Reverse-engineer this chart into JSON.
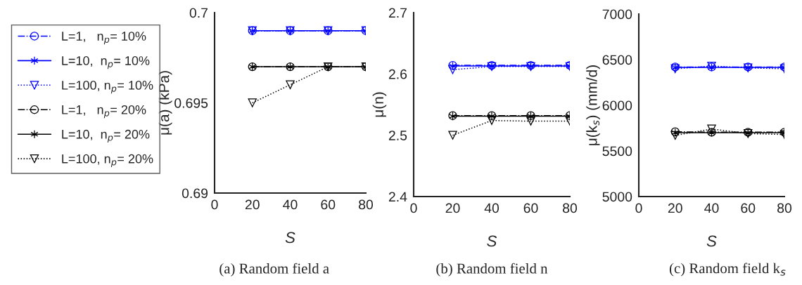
{
  "chart_data": [
    {
      "type": "line",
      "xlabel": "S",
      "ylabel": "μ(a) (kPa)",
      "x": [
        20,
        40,
        60,
        80
      ],
      "xlim": [
        0,
        80
      ],
      "xticks": [
        0,
        20,
        40,
        60,
        80
      ],
      "ylim": [
        0.69,
        0.7
      ],
      "yticks": [
        0.69,
        0.695,
        0.7
      ],
      "grid": false,
      "legend": "left",
      "annotations": [
        "(a) Random field a"
      ],
      "series": [
        {
          "name": "L=1,   n$_{p}$= 10%",
          "color": "#0000ff",
          "marker": "circle",
          "line_style": "dashdot",
          "values": [
            0.699,
            0.699,
            0.699,
            0.699
          ]
        },
        {
          "name": "L=10,  n$_{p}$= 10%",
          "color": "#0000ff",
          "marker": "cross",
          "line_style": "solid",
          "values": [
            0.699,
            0.699,
            0.699,
            0.699
          ]
        },
        {
          "name": "L=100, n$_{p}$= 10%",
          "color": "#0000ff",
          "marker": "triangle",
          "line_style": "dotted",
          "values": [
            0.699,
            0.699,
            0.699,
            0.699
          ]
        },
        {
          "name": "L=1,   n$_{p}$= 20%",
          "color": "#000000",
          "marker": "circle",
          "line_style": "dashdot",
          "values": [
            0.697,
            0.697,
            0.697,
            0.697
          ]
        },
        {
          "name": "L=10,  n$_{p}$= 20%",
          "color": "#000000",
          "marker": "cross",
          "line_style": "solid",
          "values": [
            0.697,
            0.697,
            0.697,
            0.697
          ]
        },
        {
          "name": "L=100, n$_{p}$= 20%",
          "color": "#000000",
          "marker": "triangle",
          "line_style": "dotted",
          "values": [
            0.695,
            0.696,
            0.697,
            0.697
          ]
        }
      ]
    },
    {
      "type": "line",
      "xlabel": "S",
      "ylabel": "μ(n)",
      "x": [
        20,
        40,
        60,
        80
      ],
      "xlim": [
        0,
        80
      ],
      "xticks": [
        0,
        20,
        40,
        60,
        80
      ],
      "ylim": [
        2.4,
        2.7
      ],
      "yticks": [
        2.4,
        2.5,
        2.6,
        2.7
      ],
      "grid": false,
      "annotations": [
        "(b) Random field n"
      ],
      "series": [
        {
          "color": "#0000ff",
          "marker": "circle",
          "line_style": "dashdot",
          "values": [
            2.614,
            2.614,
            2.614,
            2.614
          ]
        },
        {
          "color": "#0000ff",
          "marker": "cross",
          "line_style": "solid",
          "values": [
            2.613,
            2.613,
            2.613,
            2.613
          ]
        },
        {
          "color": "#0000ff",
          "marker": "triangle",
          "line_style": "dotted",
          "values": [
            2.607,
            2.612,
            2.612,
            2.612
          ]
        },
        {
          "color": "#000000",
          "marker": "circle",
          "line_style": "dashdot",
          "values": [
            2.532,
            2.532,
            2.532,
            2.532
          ]
        },
        {
          "color": "#000000",
          "marker": "cross",
          "line_style": "solid",
          "values": [
            2.531,
            2.531,
            2.531,
            2.531
          ]
        },
        {
          "color": "#000000",
          "marker": "triangle",
          "line_style": "dotted",
          "values": [
            2.5,
            2.524,
            2.523,
            2.523
          ]
        }
      ]
    },
    {
      "type": "line",
      "xlabel": "S",
      "ylabel": "μ(k$_{s}$) (mm/d)",
      "x": [
        20,
        40,
        60,
        80
      ],
      "xlim": [
        0,
        80
      ],
      "xticks": [
        0,
        20,
        40,
        60,
        80
      ],
      "ylim": [
        5000,
        7000
      ],
      "yticks": [
        5000,
        5500,
        6000,
        6500,
        7000
      ],
      "grid": false,
      "annotations": [
        "(c) Random field k$_{s}$"
      ],
      "series": [
        {
          "color": "#0000ff",
          "marker": "circle",
          "line_style": "dashdot",
          "values": [
            6420,
            6420,
            6420,
            6420
          ]
        },
        {
          "color": "#0000ff",
          "marker": "cross",
          "line_style": "solid",
          "values": [
            6415,
            6415,
            6415,
            6415
          ]
        },
        {
          "color": "#0000ff",
          "marker": "triangle",
          "line_style": "dotted",
          "values": [
            6400,
            6430,
            6410,
            6400
          ]
        },
        {
          "color": "#000000",
          "marker": "circle",
          "line_style": "dashdot",
          "values": [
            5710,
            5705,
            5705,
            5705
          ]
        },
        {
          "color": "#000000",
          "marker": "cross",
          "line_style": "solid",
          "values": [
            5700,
            5700,
            5700,
            5700
          ]
        },
        {
          "color": "#000000",
          "marker": "triangle",
          "line_style": "dotted",
          "values": [
            5670,
            5740,
            5690,
            5680
          ]
        }
      ]
    }
  ]
}
